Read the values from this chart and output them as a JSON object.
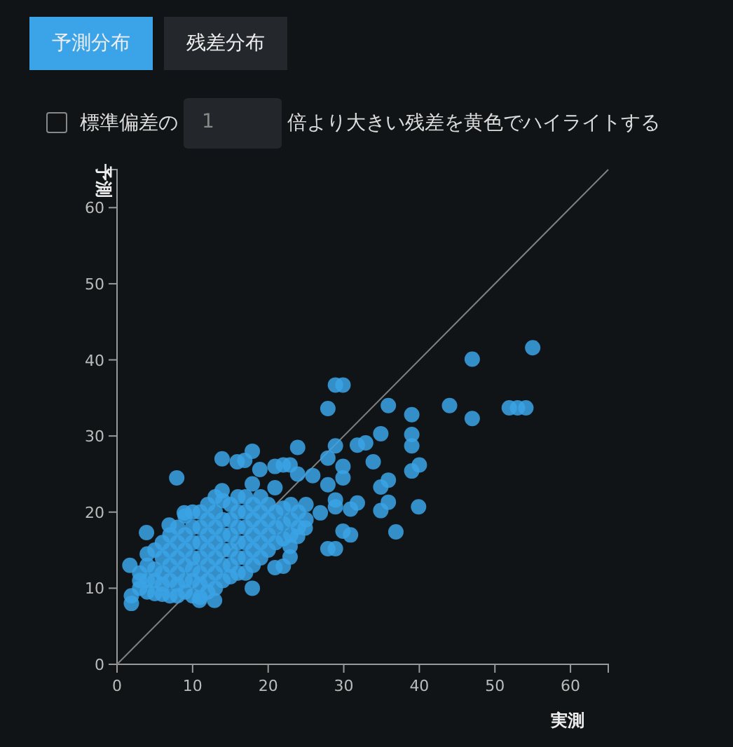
{
  "chart_data": {
    "type": "scatter",
    "xlabel": "実測",
    "ylabel": "予測",
    "xlim": [
      0,
      65
    ],
    "ylim": [
      0,
      65
    ],
    "xticks": [
      0,
      10,
      20,
      30,
      40,
      50,
      60
    ],
    "yticks": [
      0,
      10,
      20,
      30,
      40,
      50,
      60
    ],
    "annotations": [
      "予測分布",
      "残差分布",
      "標準偏差の",
      "1",
      "倍より大きい残差を黄色でハイライトする"
    ],
    "series": [
      {
        "marker": "circle",
        "color": "#3ba3e6",
        "x": [
          55,
          47,
          47,
          51.9,
          53,
          54.1,
          44,
          39,
          39,
          39,
          40,
          39,
          39.9,
          36.9,
          35.9,
          34.9,
          35.9,
          34.9,
          35.9,
          34.9,
          33.9,
          32.9,
          31.8,
          31.8,
          30.9,
          30.9,
          29.9,
          28.9,
          29.9,
          27.9,
          28.9,
          27.9,
          29.9,
          29.9,
          28.9,
          28.9,
          27.9,
          28.9,
          27.9,
          25.9,
          26.9,
          23.9,
          23.9,
          22.9,
          20.9,
          22,
          18.9,
          17.9,
          16.9,
          15.9,
          13.9,
          7.9,
          17.9,
          13.9,
          20.9,
          22,
          22.9,
          22.9,
          17.9,
          12.9,
          10.9,
          1.9,
          1.9,
          1.7,
          3.9,
          6.9,
          8.9,
          24.9,
          23.9,
          20.9,
          3,
          3,
          3,
          4,
          4,
          4,
          4,
          5,
          5,
          5,
          5,
          6,
          6,
          6,
          6,
          6,
          7,
          7,
          7,
          7,
          7,
          8,
          8,
          8,
          8,
          8,
          8,
          9,
          9,
          9,
          9,
          9,
          9,
          10,
          10,
          10,
          10,
          10,
          10,
          10,
          11,
          11,
          11,
          11,
          11,
          11,
          11,
          12,
          12,
          12,
          12,
          12,
          12,
          12,
          13,
          13,
          13,
          13,
          13,
          13,
          13,
          14,
          14,
          14,
          14,
          14,
          14,
          15,
          15,
          15,
          15,
          15,
          15,
          16,
          16,
          16,
          16,
          16,
          16,
          17,
          17,
          17,
          17,
          17,
          17,
          18,
          18,
          18,
          18,
          18,
          19,
          19,
          19,
          19,
          19,
          20,
          20,
          20,
          20,
          21,
          21,
          21,
          22,
          22,
          22,
          23,
          23,
          23,
          24,
          24,
          25,
          25
        ],
        "values": [
          41.6,
          40.1,
          32.3,
          33.7,
          33.7,
          33.7,
          34,
          32.8,
          30.2,
          28.7,
          26.2,
          25.4,
          20.7,
          17.4,
          34,
          30.3,
          24.2,
          23.3,
          21.3,
          20.2,
          26.6,
          29.1,
          28.8,
          21.2,
          20.4,
          17,
          17.5,
          36.7,
          36.7,
          33.6,
          28.7,
          27.1,
          26,
          24.5,
          21.6,
          20.7,
          15.2,
          15.2,
          23.6,
          24.8,
          19.9,
          28.5,
          25,
          26.2,
          26,
          26.2,
          25.6,
          28,
          26.8,
          26.6,
          27,
          24.5,
          23.7,
          22.8,
          12.7,
          12.9,
          14.1,
          15.5,
          10,
          8.4,
          8.4,
          8,
          9,
          13,
          17.3,
          18.3,
          19.9,
          17.9,
          16.8,
          23.2,
          10,
          11,
          12,
          9.5,
          11,
          13,
          14.5,
          9.3,
          11,
          12.5,
          15,
          9.2,
          10.5,
          12,
          14,
          16,
          9,
          11,
          13,
          15,
          17,
          9,
          10.5,
          12,
          14,
          16,
          18,
          9.5,
          11,
          13,
          15,
          17,
          19.5,
          9,
          11,
          12.5,
          14,
          16,
          18,
          20,
          8.8,
          10.5,
          12,
          14,
          16,
          18,
          20,
          9.5,
          11,
          13,
          15,
          17,
          19,
          21,
          10,
          12,
          14,
          16,
          18,
          20,
          22,
          11,
          13,
          15,
          17,
          19,
          21.5,
          11.5,
          13,
          15,
          17,
          19,
          21,
          12,
          14,
          16,
          18,
          20,
          22,
          12,
          14,
          16,
          18,
          20,
          22,
          13,
          15,
          17,
          19,
          21,
          14,
          16,
          18,
          20,
          22,
          15,
          17,
          19,
          21,
          16,
          18,
          20,
          16.5,
          18.5,
          20.5,
          17,
          19,
          21,
          18,
          20,
          19,
          21
        ]
      },
      {
        "type": "line",
        "color": "#808080",
        "line_style": "solid",
        "x": [
          0,
          65
        ],
        "values": [
          0,
          65
        ]
      }
    ]
  }
}
